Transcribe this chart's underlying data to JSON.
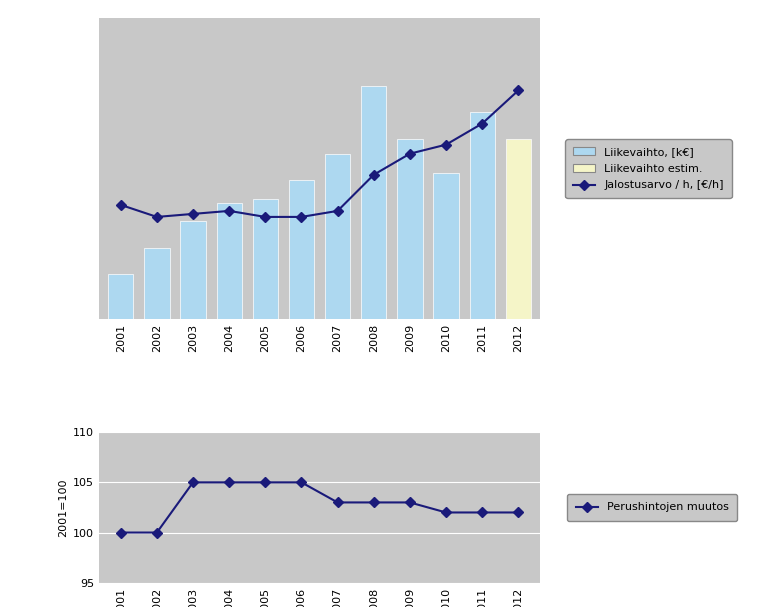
{
  "years": [
    2001,
    2002,
    2003,
    2004,
    2005,
    2006,
    2007,
    2008,
    2009,
    2010,
    2011,
    2012
  ],
  "liikevaihto": [
    1200,
    1900,
    2600,
    3100,
    3200,
    3700,
    4400,
    6200,
    4800,
    3900,
    5500,
    4800
  ],
  "bar_colors": [
    "#add8f0",
    "#add8f0",
    "#add8f0",
    "#add8f0",
    "#add8f0",
    "#add8f0",
    "#add8f0",
    "#add8f0",
    "#add8f0",
    "#add8f0",
    "#add8f0",
    "#f5f5c8"
  ],
  "jalostusarvo": [
    38,
    34,
    35,
    36,
    34,
    34,
    36,
    48,
    55,
    58,
    65,
    76
  ],
  "perushintojen_muutos": [
    100,
    100,
    105,
    105,
    105,
    105,
    103,
    103,
    103,
    102,
    102,
    102
  ],
  "line_color": "#1a1a7a",
  "bar_color_normal": "#add8f0",
  "bar_color_estim": "#f5f5c8",
  "bg_color": "#c8c8c8",
  "white": "#ffffff",
  "legend1": [
    "Liikevaihto, [k€]",
    "Liikevaihto estim.",
    "Jalostusarvo / h, [€/h]"
  ],
  "legend2": [
    "Perushintojen muutos"
  ],
  "ylabel2": "2001=100",
  "ylim2": [
    95,
    110
  ],
  "yticks2": [
    95,
    100,
    105,
    110
  ]
}
